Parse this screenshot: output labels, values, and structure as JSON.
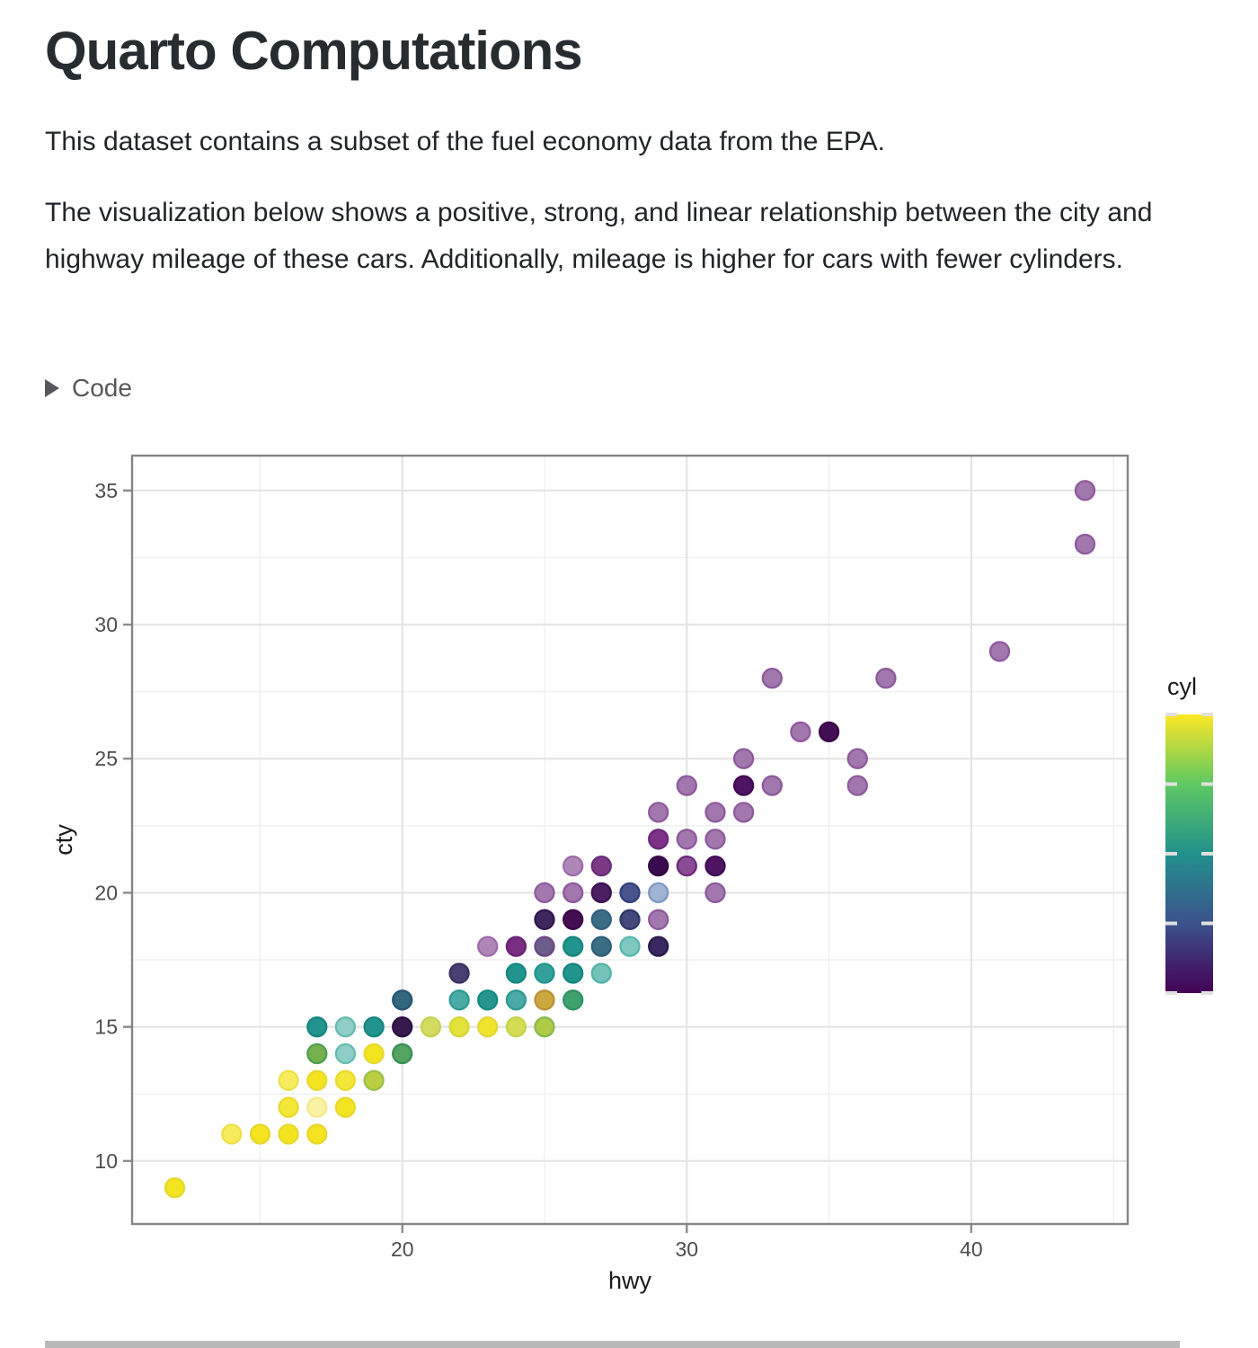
{
  "page": {
    "title": "Quarto Computations",
    "para1": "This dataset contains a subset of the fuel economy data from the EPA.",
    "para2": "The visualization below shows a positive, strong, and linear relationship between the city and highway mileage of these cars. Additionally, mileage is higher for cars with fewer cylinders.",
    "code_label": "Code"
  },
  "chart_data": {
    "type": "scatter",
    "xlabel": "hwy",
    "ylabel": "cty",
    "x_ticks": [
      20,
      30,
      40
    ],
    "x_minor": [
      15,
      25,
      35,
      45
    ],
    "y_ticks": [
      10,
      15,
      20,
      25,
      30,
      35
    ],
    "y_minor": [
      12.5,
      17.5,
      22.5,
      27.5,
      32.5
    ],
    "xlim": [
      10.5,
      45.5
    ],
    "ylim": [
      7.65,
      36.3
    ],
    "grid": "on",
    "legend": {
      "title": "cyl",
      "position": "right",
      "ticks": [
        4,
        5,
        6,
        7,
        8
      ],
      "stops": [
        [
          4,
          "#440154"
        ],
        [
          5,
          "#3B528B"
        ],
        [
          6,
          "#21918C"
        ],
        [
          7,
          "#5EC962"
        ],
        [
          8,
          "#FDE725"
        ]
      ]
    },
    "palette": {
      "Y": [
        "#F3E321",
        "#E6D92E"
      ],
      "Yl": [
        "#F6EB5A",
        "#EDE04A"
      ],
      "Ym": [
        "#F4E738",
        "#E8DB2F"
      ],
      "Yp": [
        "#FAF3A6",
        "#F3E98C"
      ],
      "Y2": [
        "#F0E32B",
        "#E2D739"
      ],
      "YGp": [
        "#D3DC60",
        "#C4D153"
      ],
      "YG1": [
        "#E2E23A",
        "#D4D83B"
      ],
      "YGp2": [
        "#D5DC51",
        "#C6D24C"
      ],
      "YG2": [
        "#BCCE44",
        "#9CC04A"
      ],
      "OL": [
        "#AFCB48",
        "#89B94E"
      ],
      "GR1": [
        "#76B04D",
        "#4F9E52"
      ],
      "GR2": [
        "#55A360",
        "#389157"
      ],
      "GT": [
        "#41A06F",
        "#2E9464"
      ],
      "MU": [
        "#CDA73F",
        "#BC9134"
      ],
      "T": [
        "#21948D",
        "#17867F"
      ],
      "T2": [
        "#4BAAA5",
        "#2B9C94"
      ],
      "T3": [
        "#27948D",
        "#138B82"
      ],
      "T4": [
        "#35A09A",
        "#21948D"
      ],
      "TL": [
        "#8FCDC6",
        "#68BBB2"
      ],
      "TLP": [
        "#75C3B8",
        "#55B3A6"
      ],
      "TLP2": [
        "#7FC8BE",
        "#57B7AB"
      ],
      "SB1": [
        "#31687E",
        "#27556F"
      ],
      "ST1": [
        "#3A6E84",
        "#2E5E77"
      ],
      "STB": [
        "#3C6C86",
        "#315F7D"
      ],
      "SL": [
        "#47548D",
        "#333F78"
      ],
      "SI": [
        "#43497A",
        "#2F3768"
      ],
      "PSB": [
        "#9FB4D2",
        "#7E97C2"
      ],
      "IN1": [
        "#4A3F72",
        "#3B2F63"
      ],
      "IN2": [
        "#39285F",
        "#2A1A4F"
      ],
      "SPB": [
        "#6B5D8C",
        "#6F4584"
      ],
      "MV": [
        "#A277AE",
        "#8D5A9C"
      ],
      "MVp": [
        "#AE87B8",
        "#9C6BA8"
      ],
      "PU1": [
        "#7A2E82",
        "#682176"
      ],
      "PU2": [
        "#7C3A85",
        "#6A2D78"
      ],
      "PU3": [
        "#8A4C94",
        "#6E2B7C"
      ],
      "PU4": [
        "#7C3287",
        "#6A2879"
      ],
      "PK0": [
        "#371A4D",
        "#2C1040"
      ],
      "PK1": [
        "#40265E",
        "#311549"
      ],
      "PK2": [
        "#440D52",
        "#3A0747"
      ],
      "PK3": [
        "#4A2063",
        "#3B1253"
      ],
      "PK4": [
        "#3A0A4E",
        "#310641"
      ],
      "PK5": [
        "#4E1463",
        "#400A54"
      ],
      "PK6": [
        "#4F1363",
        "#410A54"
      ],
      "PK7": [
        "#430D56",
        "#380648"
      ]
    },
    "points": [
      [
        12,
        9,
        "Y"
      ],
      [
        14,
        11,
        "Yl"
      ],
      [
        15,
        11,
        "Y"
      ],
      [
        16,
        11,
        "Y"
      ],
      [
        17,
        11,
        "Y"
      ],
      [
        16,
        12,
        "Ym"
      ],
      [
        17,
        12,
        "Yp"
      ],
      [
        18,
        12,
        "Y"
      ],
      [
        16,
        13,
        "Yl"
      ],
      [
        17,
        13,
        "Y"
      ],
      [
        18,
        13,
        "Ym"
      ],
      [
        19,
        13,
        "YG2"
      ],
      [
        17,
        14,
        "GR1"
      ],
      [
        18,
        14,
        "TL"
      ],
      [
        19,
        14,
        "Y"
      ],
      [
        20,
        14,
        "GR2"
      ],
      [
        17,
        15,
        "T"
      ],
      [
        18,
        15,
        "TL"
      ],
      [
        19,
        15,
        "T"
      ],
      [
        20,
        15,
        "PK0"
      ],
      [
        21,
        15,
        "YGp"
      ],
      [
        22,
        15,
        "YG1"
      ],
      [
        23,
        15,
        "Y2"
      ],
      [
        24,
        15,
        "YGp2"
      ],
      [
        25,
        15,
        "OL"
      ],
      [
        20,
        16,
        "SB1"
      ],
      [
        22,
        16,
        "T2"
      ],
      [
        23,
        16,
        "T3"
      ],
      [
        24,
        16,
        "T2"
      ],
      [
        25,
        16,
        "MU"
      ],
      [
        26,
        16,
        "GT"
      ],
      [
        22,
        17,
        "IN1"
      ],
      [
        24,
        17,
        "T"
      ],
      [
        25,
        17,
        "T4"
      ],
      [
        26,
        17,
        "T"
      ],
      [
        27,
        17,
        "TLP"
      ],
      [
        23,
        18,
        "MVp"
      ],
      [
        24,
        18,
        "PU1"
      ],
      [
        25,
        18,
        "SPB"
      ],
      [
        26,
        18,
        "T"
      ],
      [
        27,
        18,
        "ST1"
      ],
      [
        28,
        18,
        "TLP2"
      ],
      [
        29,
        18,
        "IN2"
      ],
      [
        25,
        19,
        "PK1"
      ],
      [
        26,
        19,
        "PK2"
      ],
      [
        27,
        19,
        "STB"
      ],
      [
        28,
        19,
        "SI"
      ],
      [
        29,
        19,
        "MV"
      ],
      [
        25,
        20,
        "MV"
      ],
      [
        26,
        20,
        "MV"
      ],
      [
        27,
        20,
        "PK3"
      ],
      [
        28,
        20,
        "SL"
      ],
      [
        29,
        20,
        "PSB"
      ],
      [
        31,
        20,
        "MV"
      ],
      [
        26,
        21,
        "MVp"
      ],
      [
        27,
        21,
        "PU2"
      ],
      [
        29,
        21,
        "PK4"
      ],
      [
        30,
        21,
        "PU3"
      ],
      [
        31,
        21,
        "PK5"
      ],
      [
        29,
        22,
        "PU4"
      ],
      [
        30,
        22,
        "MV"
      ],
      [
        31,
        22,
        "MV"
      ],
      [
        29,
        23,
        "MV"
      ],
      [
        31,
        23,
        "MV"
      ],
      [
        32,
        23,
        "MV"
      ],
      [
        30,
        24,
        "MV"
      ],
      [
        32,
        24,
        "PK6"
      ],
      [
        33,
        24,
        "MV"
      ],
      [
        36,
        24,
        "MV"
      ],
      [
        32,
        25,
        "MV"
      ],
      [
        36,
        25,
        "MV"
      ],
      [
        34,
        26,
        "MV"
      ],
      [
        35,
        26,
        "PK7"
      ],
      [
        33,
        28,
        "MV"
      ],
      [
        37,
        28,
        "MV"
      ],
      [
        41,
        29,
        "MV"
      ],
      [
        44,
        33,
        "MV"
      ],
      [
        44,
        35,
        "MV"
      ]
    ],
    "style": {
      "panel_border": "#858585",
      "grid_major": "#E4E4E4",
      "grid_minor": "#F1F1F1",
      "tick_mark": "#8c8c8c",
      "tick_label": "#4d4d4d",
      "axis_title": "#1a1a1a",
      "legend_tick": "#E0E0E0"
    }
  }
}
